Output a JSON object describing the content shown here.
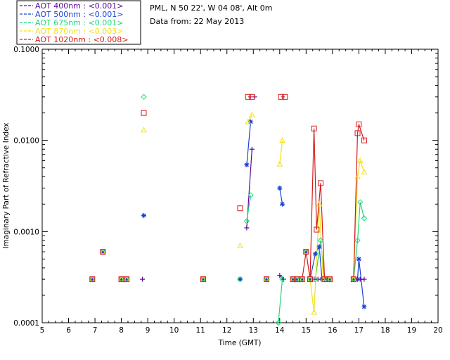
{
  "chart_data": {
    "type": "scatter",
    "title": "PML, N 50 22', W 04 08', Alt 0m",
    "subtitle": "Data from: 22 May 2013",
    "xlabel": "Time (GMT)",
    "ylabel": "Imaginary Part of Refractive Index",
    "xlim": [
      5,
      20
    ],
    "ylim": [
      0.0001,
      0.1
    ],
    "yscale": "log",
    "xticks": [
      "5",
      "6",
      "7",
      "8",
      "9",
      "10",
      "11",
      "12",
      "13",
      "14",
      "15",
      "16",
      "17",
      "18",
      "19",
      "20"
    ],
    "yticks": [
      {
        "value": 0.0001,
        "label": "0.0001"
      },
      {
        "value": 0.001,
        "label": "0.0010"
      },
      {
        "value": 0.01,
        "label": "0.0100"
      },
      {
        "value": 0.1,
        "label": "0.1000"
      }
    ],
    "legend_position": "top-left",
    "series": [
      {
        "name": "AOT  400nm : <0.001>",
        "color": "#5a0a9e",
        "marker": "plus",
        "points": [
          [
            6.9,
            0.0003
          ],
          [
            7.3,
            0.0006
          ],
          [
            8.0,
            0.0003
          ],
          [
            8.2,
            0.0003
          ],
          [
            8.8,
            0.0003
          ],
          [
            11.1,
            0.0003
          ],
          [
            12.5,
            0.0003
          ],
          [
            12.75,
            0.0011
          ],
          [
            12.95,
            0.008
          ],
          [
            13.05,
            0.03
          ],
          [
            13.5,
            0.0003
          ],
          [
            14.0,
            0.00033
          ],
          [
            14.15,
            0.0003
          ],
          [
            14.5,
            0.0003
          ],
          [
            14.65,
            0.0003
          ],
          [
            14.85,
            0.0003
          ],
          [
            15.0,
            0.0006
          ],
          [
            15.15,
            0.0003
          ],
          [
            15.3,
            0.0003
          ],
          [
            15.45,
            0.0003
          ],
          [
            15.6,
            0.0003
          ],
          [
            15.75,
            0.0003
          ],
          [
            15.9,
            0.0003
          ],
          [
            16.8,
            0.0003
          ],
          [
            16.95,
            0.0003
          ],
          [
            17.05,
            0.0003
          ],
          [
            17.2,
            0.0003
          ]
        ],
        "lines": [
          [
            [
              12.75,
              0.0011
            ],
            [
              12.95,
              0.008
            ]
          ],
          [
            [
              14.0,
              0.00033
            ],
            [
              14.15,
              0.0003
            ]
          ],
          [
            [
              16.95,
              0.0003
            ],
            [
              17.05,
              0.0003
            ],
            [
              17.2,
              0.0003
            ]
          ]
        ]
      },
      {
        "name": "AOT  500nm : <0.001>",
        "color": "#1a3fd8",
        "marker": "asterisk",
        "points": [
          [
            6.9,
            0.0003
          ],
          [
            7.3,
            0.0006
          ],
          [
            8.0,
            0.0003
          ],
          [
            8.2,
            0.0003
          ],
          [
            8.85,
            0.0015
          ],
          [
            11.1,
            0.0003
          ],
          [
            12.5,
            0.0003
          ],
          [
            12.75,
            0.0054
          ],
          [
            12.9,
            0.016
          ],
          [
            13.5,
            0.0003
          ],
          [
            14.0,
            0.003
          ],
          [
            14.1,
            0.002
          ],
          [
            14.5,
            0.0003
          ],
          [
            14.65,
            0.0003
          ],
          [
            14.85,
            0.0003
          ],
          [
            15.0,
            0.0006
          ],
          [
            15.15,
            0.0003
          ],
          [
            15.35,
            0.00057
          ],
          [
            15.5,
            0.00068
          ],
          [
            15.6,
            0.0003
          ],
          [
            15.75,
            0.0003
          ],
          [
            15.9,
            0.0003
          ],
          [
            16.8,
            0.0003
          ],
          [
            16.95,
            0.0003
          ],
          [
            17.0,
            0.0005
          ],
          [
            17.2,
            0.00015
          ]
        ],
        "lines": [
          [
            [
              12.75,
              0.0054
            ],
            [
              12.9,
              0.016
            ]
          ],
          [
            [
              14.0,
              0.003
            ],
            [
              14.1,
              0.002
            ]
          ],
          [
            [
              15.15,
              0.0003
            ],
            [
              15.35,
              0.00057
            ],
            [
              15.5,
              0.00068
            ],
            [
              15.6,
              0.0003
            ]
          ],
          [
            [
              16.95,
              0.0003
            ],
            [
              17.0,
              0.0005
            ],
            [
              17.2,
              0.00015
            ]
          ]
        ]
      },
      {
        "name": "AOT  675nm : <0.001>",
        "color": "#1fd67c",
        "marker": "diamond",
        "points": [
          [
            6.9,
            0.0003
          ],
          [
            7.3,
            0.0006
          ],
          [
            8.0,
            0.0003
          ],
          [
            8.2,
            0.0003
          ],
          [
            8.85,
            0.03
          ],
          [
            11.1,
            0.0003
          ],
          [
            12.5,
            0.0003
          ],
          [
            12.75,
            0.0013
          ],
          [
            12.9,
            0.0025
          ],
          [
            13.5,
            0.0003
          ],
          [
            13.95,
            0.0001
          ],
          [
            14.1,
            0.0003
          ],
          [
            14.5,
            0.0003
          ],
          [
            14.65,
            0.0003
          ],
          [
            14.85,
            0.0003
          ],
          [
            15.0,
            0.0006
          ],
          [
            15.15,
            0.0003
          ],
          [
            15.35,
            0.0003
          ],
          [
            15.55,
            0.0008
          ],
          [
            15.7,
            0.0003
          ],
          [
            15.9,
            0.0003
          ],
          [
            16.8,
            0.0003
          ],
          [
            16.95,
            0.0008
          ],
          [
            17.05,
            0.0021
          ],
          [
            17.2,
            0.0014
          ]
        ],
        "lines": [
          [
            [
              12.75,
              0.0013
            ],
            [
              12.9,
              0.0025
            ]
          ],
          [
            [
              13.95,
              0.0001
            ],
            [
              14.1,
              0.0003
            ]
          ],
          [
            [
              15.35,
              0.0003
            ],
            [
              15.55,
              0.0008
            ],
            [
              15.7,
              0.0003
            ]
          ],
          [
            [
              16.8,
              0.0003
            ],
            [
              16.95,
              0.0008
            ],
            [
              17.05,
              0.0021
            ],
            [
              17.2,
              0.0014
            ]
          ]
        ]
      },
      {
        "name": "AOT  870nm : <0.003>",
        "color": "#f2e21a",
        "marker": "triangle",
        "points": [
          [
            6.9,
            0.0003
          ],
          [
            7.3,
            0.0006
          ],
          [
            8.0,
            0.0003
          ],
          [
            8.2,
            0.0003
          ],
          [
            8.85,
            0.013
          ],
          [
            11.1,
            0.0003
          ],
          [
            12.5,
            0.0007
          ],
          [
            12.8,
            0.016
          ],
          [
            12.95,
            0.019
          ],
          [
            13.5,
            0.0003
          ],
          [
            14.0,
            0.0055
          ],
          [
            14.1,
            0.01
          ],
          [
            14.5,
            0.0003
          ],
          [
            14.65,
            0.0003
          ],
          [
            14.85,
            0.0003
          ],
          [
            15.0,
            0.0006
          ],
          [
            15.15,
            0.0003
          ],
          [
            15.3,
            0.00013
          ],
          [
            15.5,
            0.002
          ],
          [
            15.65,
            0.0003
          ],
          [
            15.9,
            0.0003
          ],
          [
            16.8,
            0.0003
          ],
          [
            16.95,
            0.004
          ],
          [
            17.05,
            0.006
          ],
          [
            17.2,
            0.0045
          ]
        ],
        "lines": [
          [
            [
              12.8,
              0.016
            ],
            [
              12.95,
              0.019
            ]
          ],
          [
            [
              14.0,
              0.0055
            ],
            [
              14.1,
              0.01
            ]
          ],
          [
            [
              15.15,
              0.0003
            ],
            [
              15.3,
              0.00013
            ],
            [
              15.5,
              0.002
            ],
            [
              15.65,
              0.0003
            ]
          ],
          [
            [
              16.8,
              0.0003
            ],
            [
              16.95,
              0.004
            ],
            [
              17.05,
              0.006
            ],
            [
              17.2,
              0.0045
            ]
          ]
        ]
      },
      {
        "name": "AOT 1020nm : <0.008>",
        "color": "#d81a1a",
        "marker": "square",
        "points": [
          [
            6.9,
            0.0003
          ],
          [
            7.3,
            0.0006
          ],
          [
            8.0,
            0.0003
          ],
          [
            8.2,
            0.0003
          ],
          [
            8.85,
            0.02
          ],
          [
            11.1,
            0.0003
          ],
          [
            12.5,
            0.0018
          ],
          [
            12.8,
            0.03
          ],
          [
            12.95,
            0.03
          ],
          [
            13.5,
            0.0003
          ],
          [
            14.05,
            0.03
          ],
          [
            14.2,
            0.03
          ],
          [
            14.5,
            0.0003
          ],
          [
            14.65,
            0.0003
          ],
          [
            14.85,
            0.0003
          ],
          [
            15.0,
            0.0006
          ],
          [
            15.15,
            0.0003
          ],
          [
            15.3,
            0.0135
          ],
          [
            15.4,
            0.00105
          ],
          [
            15.55,
            0.0034
          ],
          [
            15.7,
            0.0003
          ],
          [
            15.9,
            0.0003
          ],
          [
            16.8,
            0.0003
          ],
          [
            16.95,
            0.012
          ],
          [
            17.0,
            0.015
          ],
          [
            17.2,
            0.01
          ]
        ],
        "lines": [
          [
            [
              12.8,
              0.03
            ],
            [
              12.95,
              0.03
            ]
          ],
          [
            [
              14.05,
              0.03
            ],
            [
              14.2,
              0.03
            ]
          ],
          [
            [
              14.85,
              0.0003
            ],
            [
              15.0,
              0.0006
            ],
            [
              15.15,
              0.0003
            ],
            [
              15.3,
              0.0135
            ],
            [
              15.4,
              0.00105
            ],
            [
              15.55,
              0.0034
            ],
            [
              15.7,
              0.0003
            ]
          ],
          [
            [
              16.8,
              0.0003
            ],
            [
              16.95,
              0.012
            ],
            [
              17.0,
              0.015
            ],
            [
              17.2,
              0.01
            ]
          ]
        ]
      }
    ]
  }
}
